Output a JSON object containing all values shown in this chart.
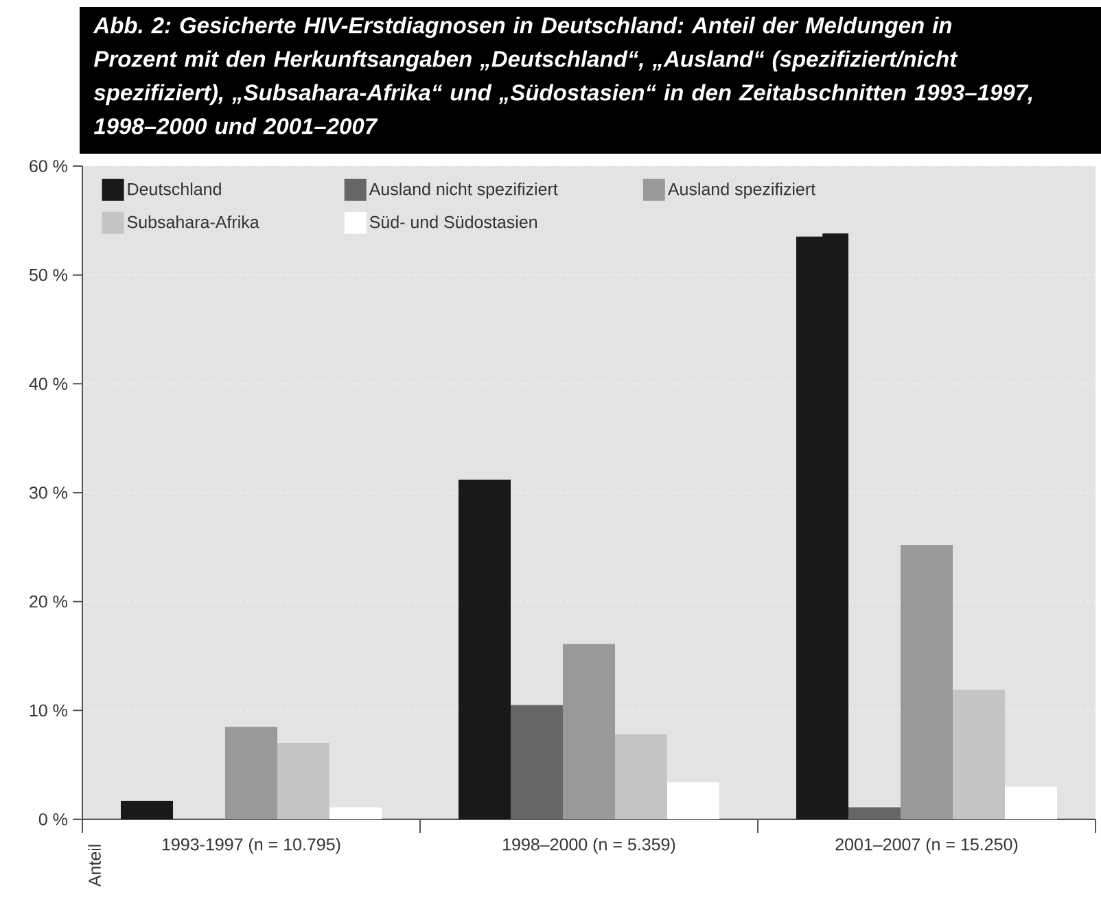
{
  "chart_data": {
    "type": "bar",
    "title": "Abb. 2: Gesicherte HIV-Erstdiagnosen in Deutschland: Anteil der Meldungen in Prozent mit den Herkunftsangaben „Deutschland“, „Ausland“ (spezifiziert/nicht spezifiziert), „Subsahara-Afrika“ und „Südostasien“ in den Zeitabschnitten 1993–1997, 1998–2000 und 2001–2007",
    "ylabel": "Anteil",
    "categories": [
      "1993-1997 (n = 10.795)",
      "1998–2000 (n = 5.359)",
      "2001–2007 (n = 15.250)"
    ],
    "series": [
      {
        "name": "Deutschland",
        "color": "#181918",
        "values": [
          1.7,
          31.2,
          53.8
        ]
      },
      {
        "name": "Ausland nicht spezifiziert",
        "color": "#666666",
        "values": [
          0,
          10.5,
          1.1
        ]
      },
      {
        "name": "Ausland spezifiziert",
        "color": "#999999",
        "values": [
          8.5,
          16.1,
          25.2
        ]
      },
      {
        "name": "Subsahara-Afrika",
        "color": "#c4c4c4",
        "values": [
          7.0,
          7.8,
          11.9
        ]
      },
      {
        "name": "Süd- und Südostasien",
        "color": "#ffffff",
        "values": [
          1.1,
          3.4,
          3.0
        ]
      }
    ],
    "ylim": [
      0,
      60
    ],
    "yticks": [
      {
        "value": 0,
        "label": "0 %"
      },
      {
        "value": 10,
        "label": "10 %"
      },
      {
        "value": 20,
        "label": "20 %"
      },
      {
        "value": 30,
        "label": "30 %"
      },
      {
        "value": 40,
        "label": "40 %"
      },
      {
        "value": 50,
        "label": "50 %"
      },
      {
        "value": 60,
        "label": "60 %"
      }
    ],
    "grid": "y",
    "legend": "top"
  }
}
